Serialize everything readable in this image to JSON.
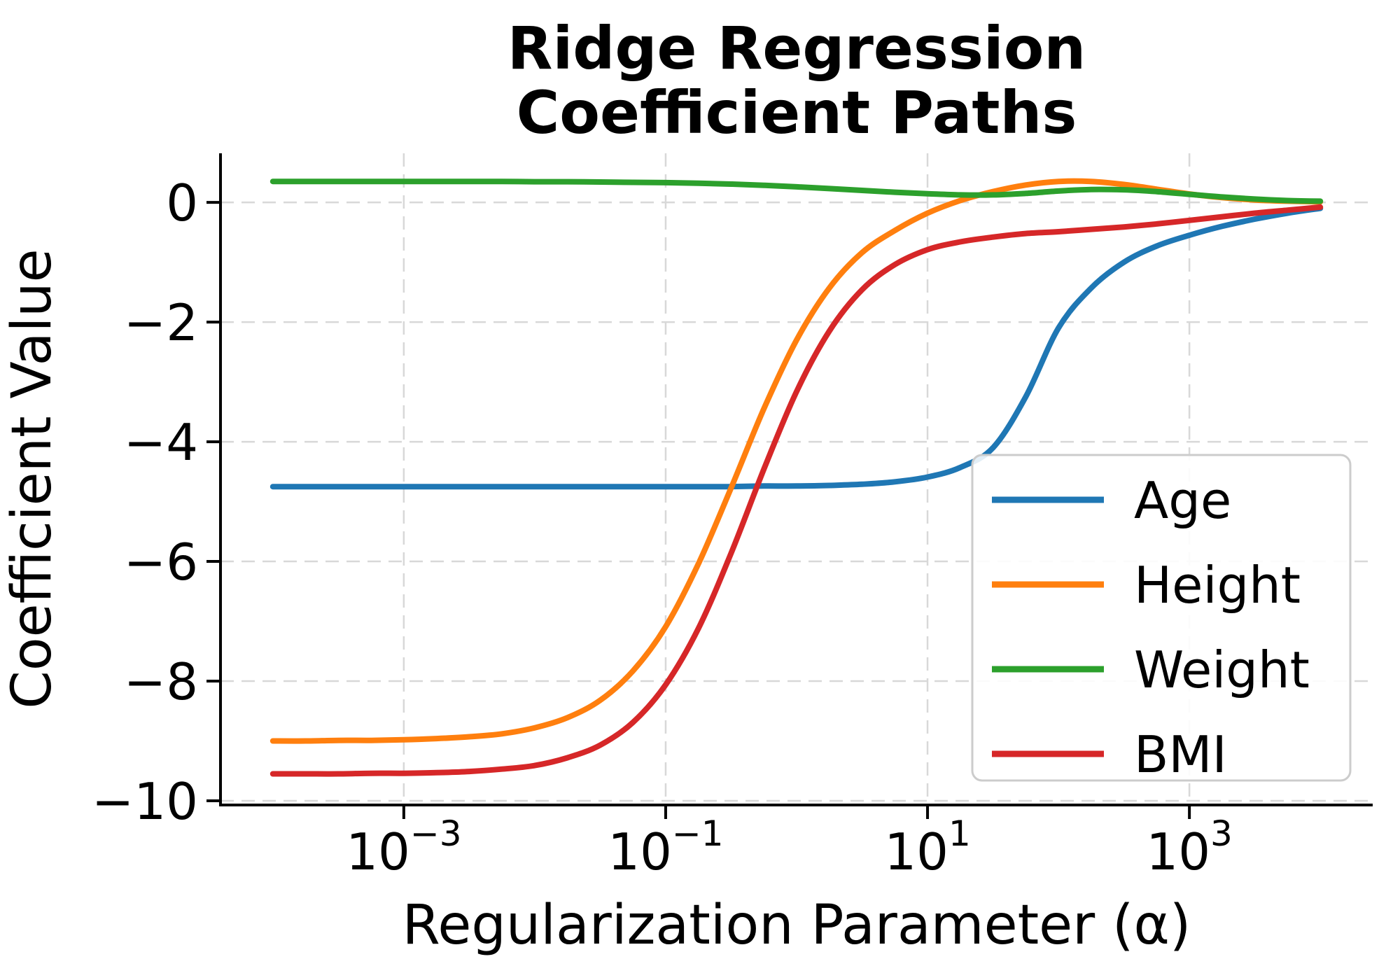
{
  "figure": {
    "title_line1": "Ridge Regression",
    "title_line2": "Coefficient Paths",
    "xlabel": "Regularization Parameter (α)",
    "ylabel": "Coefficient Value",
    "background_color": "#ffffff",
    "text_color": "#000000"
  },
  "chart_data": {
    "type": "line",
    "title": "Ridge Regression Coefficient Paths",
    "xlabel": "Regularization Parameter (α)",
    "ylabel": "Coefficient Value",
    "x_scale": "log",
    "xlim_log10": [
      -4.4,
      4.4
    ],
    "ylim": [
      -10.07,
      0.82
    ],
    "grid": {
      "on": true,
      "style": "dashed",
      "color": "#d8d8d8",
      "dash": "19 11",
      "width": 2.5
    },
    "legend_position": "lower right",
    "x_ticks": [
      {
        "log10": -3,
        "base": "10",
        "exp": "−3"
      },
      {
        "log10": -1,
        "base": "10",
        "exp": "−1"
      },
      {
        "log10": 1,
        "base": "10",
        "exp": "1"
      },
      {
        "log10": 3,
        "base": "10",
        "exp": "3"
      }
    ],
    "y_ticks": [
      {
        "value": 0,
        "label": "0"
      },
      {
        "value": -2,
        "label": "−2"
      },
      {
        "value": -4,
        "label": "−4"
      },
      {
        "value": -6,
        "label": "−6"
      },
      {
        "value": -8,
        "label": "−8"
      },
      {
        "value": -10,
        "label": "−10"
      }
    ],
    "x_log10": [
      -4,
      -3.75,
      -3.5,
      -3.25,
      -3,
      -2.75,
      -2.5,
      -2.25,
      -2,
      -1.75,
      -1.5,
      -1.25,
      -1,
      -0.75,
      -0.5,
      -0.25,
      0,
      0.25,
      0.5,
      0.75,
      1,
      1.25,
      1.5,
      1.75,
      2,
      2.25,
      2.5,
      2.75,
      3,
      3.25,
      3.5,
      3.75,
      4
    ],
    "series": [
      {
        "name": "Age",
        "color": "#1f77b4",
        "line_width": 8,
        "values": [
          -4.75,
          -4.75,
          -4.75,
          -4.75,
          -4.75,
          -4.75,
          -4.75,
          -4.75,
          -4.75,
          -4.75,
          -4.75,
          -4.75,
          -4.75,
          -4.75,
          -4.75,
          -4.74,
          -4.74,
          -4.73,
          -4.71,
          -4.67,
          -4.59,
          -4.43,
          -4.1,
          -3.25,
          -2.1,
          -1.43,
          -1.0,
          -0.73,
          -0.55,
          -0.4,
          -0.28,
          -0.18,
          -0.1
        ]
      },
      {
        "name": "Height",
        "color": "#ff7f0e",
        "line_width": 8,
        "values": [
          -9.0,
          -9.0,
          -8.99,
          -8.99,
          -8.98,
          -8.96,
          -8.93,
          -8.88,
          -8.78,
          -8.61,
          -8.32,
          -7.83,
          -7.09,
          -6.04,
          -4.77,
          -3.45,
          -2.3,
          -1.43,
          -0.84,
          -0.47,
          -0.18,
          0.03,
          0.18,
          0.29,
          0.35,
          0.35,
          0.3,
          0.22,
          0.14,
          0.08,
          0.04,
          0.02,
          0.01
        ]
      },
      {
        "name": "Weight",
        "color": "#2ca02c",
        "line_width": 8,
        "values": [
          0.35,
          0.35,
          0.35,
          0.35,
          0.35,
          0.35,
          0.35,
          0.35,
          0.345,
          0.345,
          0.34,
          0.335,
          0.33,
          0.32,
          0.305,
          0.285,
          0.26,
          0.23,
          0.2,
          0.17,
          0.145,
          0.125,
          0.125,
          0.15,
          0.19,
          0.215,
          0.21,
          0.18,
          0.135,
          0.09,
          0.055,
          0.03,
          0.02
        ]
      },
      {
        "name": "BMI",
        "color": "#d62728",
        "line_width": 8,
        "values": [
          -9.55,
          -9.55,
          -9.55,
          -9.54,
          -9.54,
          -9.53,
          -9.51,
          -9.47,
          -9.41,
          -9.28,
          -9.07,
          -8.69,
          -8.06,
          -7.12,
          -5.86,
          -4.46,
          -3.16,
          -2.15,
          -1.46,
          -1.04,
          -0.79,
          -0.66,
          -0.58,
          -0.52,
          -0.49,
          -0.45,
          -0.41,
          -0.36,
          -0.3,
          -0.24,
          -0.18,
          -0.13,
          -0.08
        ]
      }
    ],
    "legend": {
      "entries": [
        "Age",
        "Height",
        "Weight",
        "BMI"
      ],
      "border_color": "#cccccc",
      "fill_color": "rgba(255,255,255,0.88)"
    }
  },
  "style": {
    "spine_color": "#000000",
    "grid_color": "#d8d8d8"
  }
}
